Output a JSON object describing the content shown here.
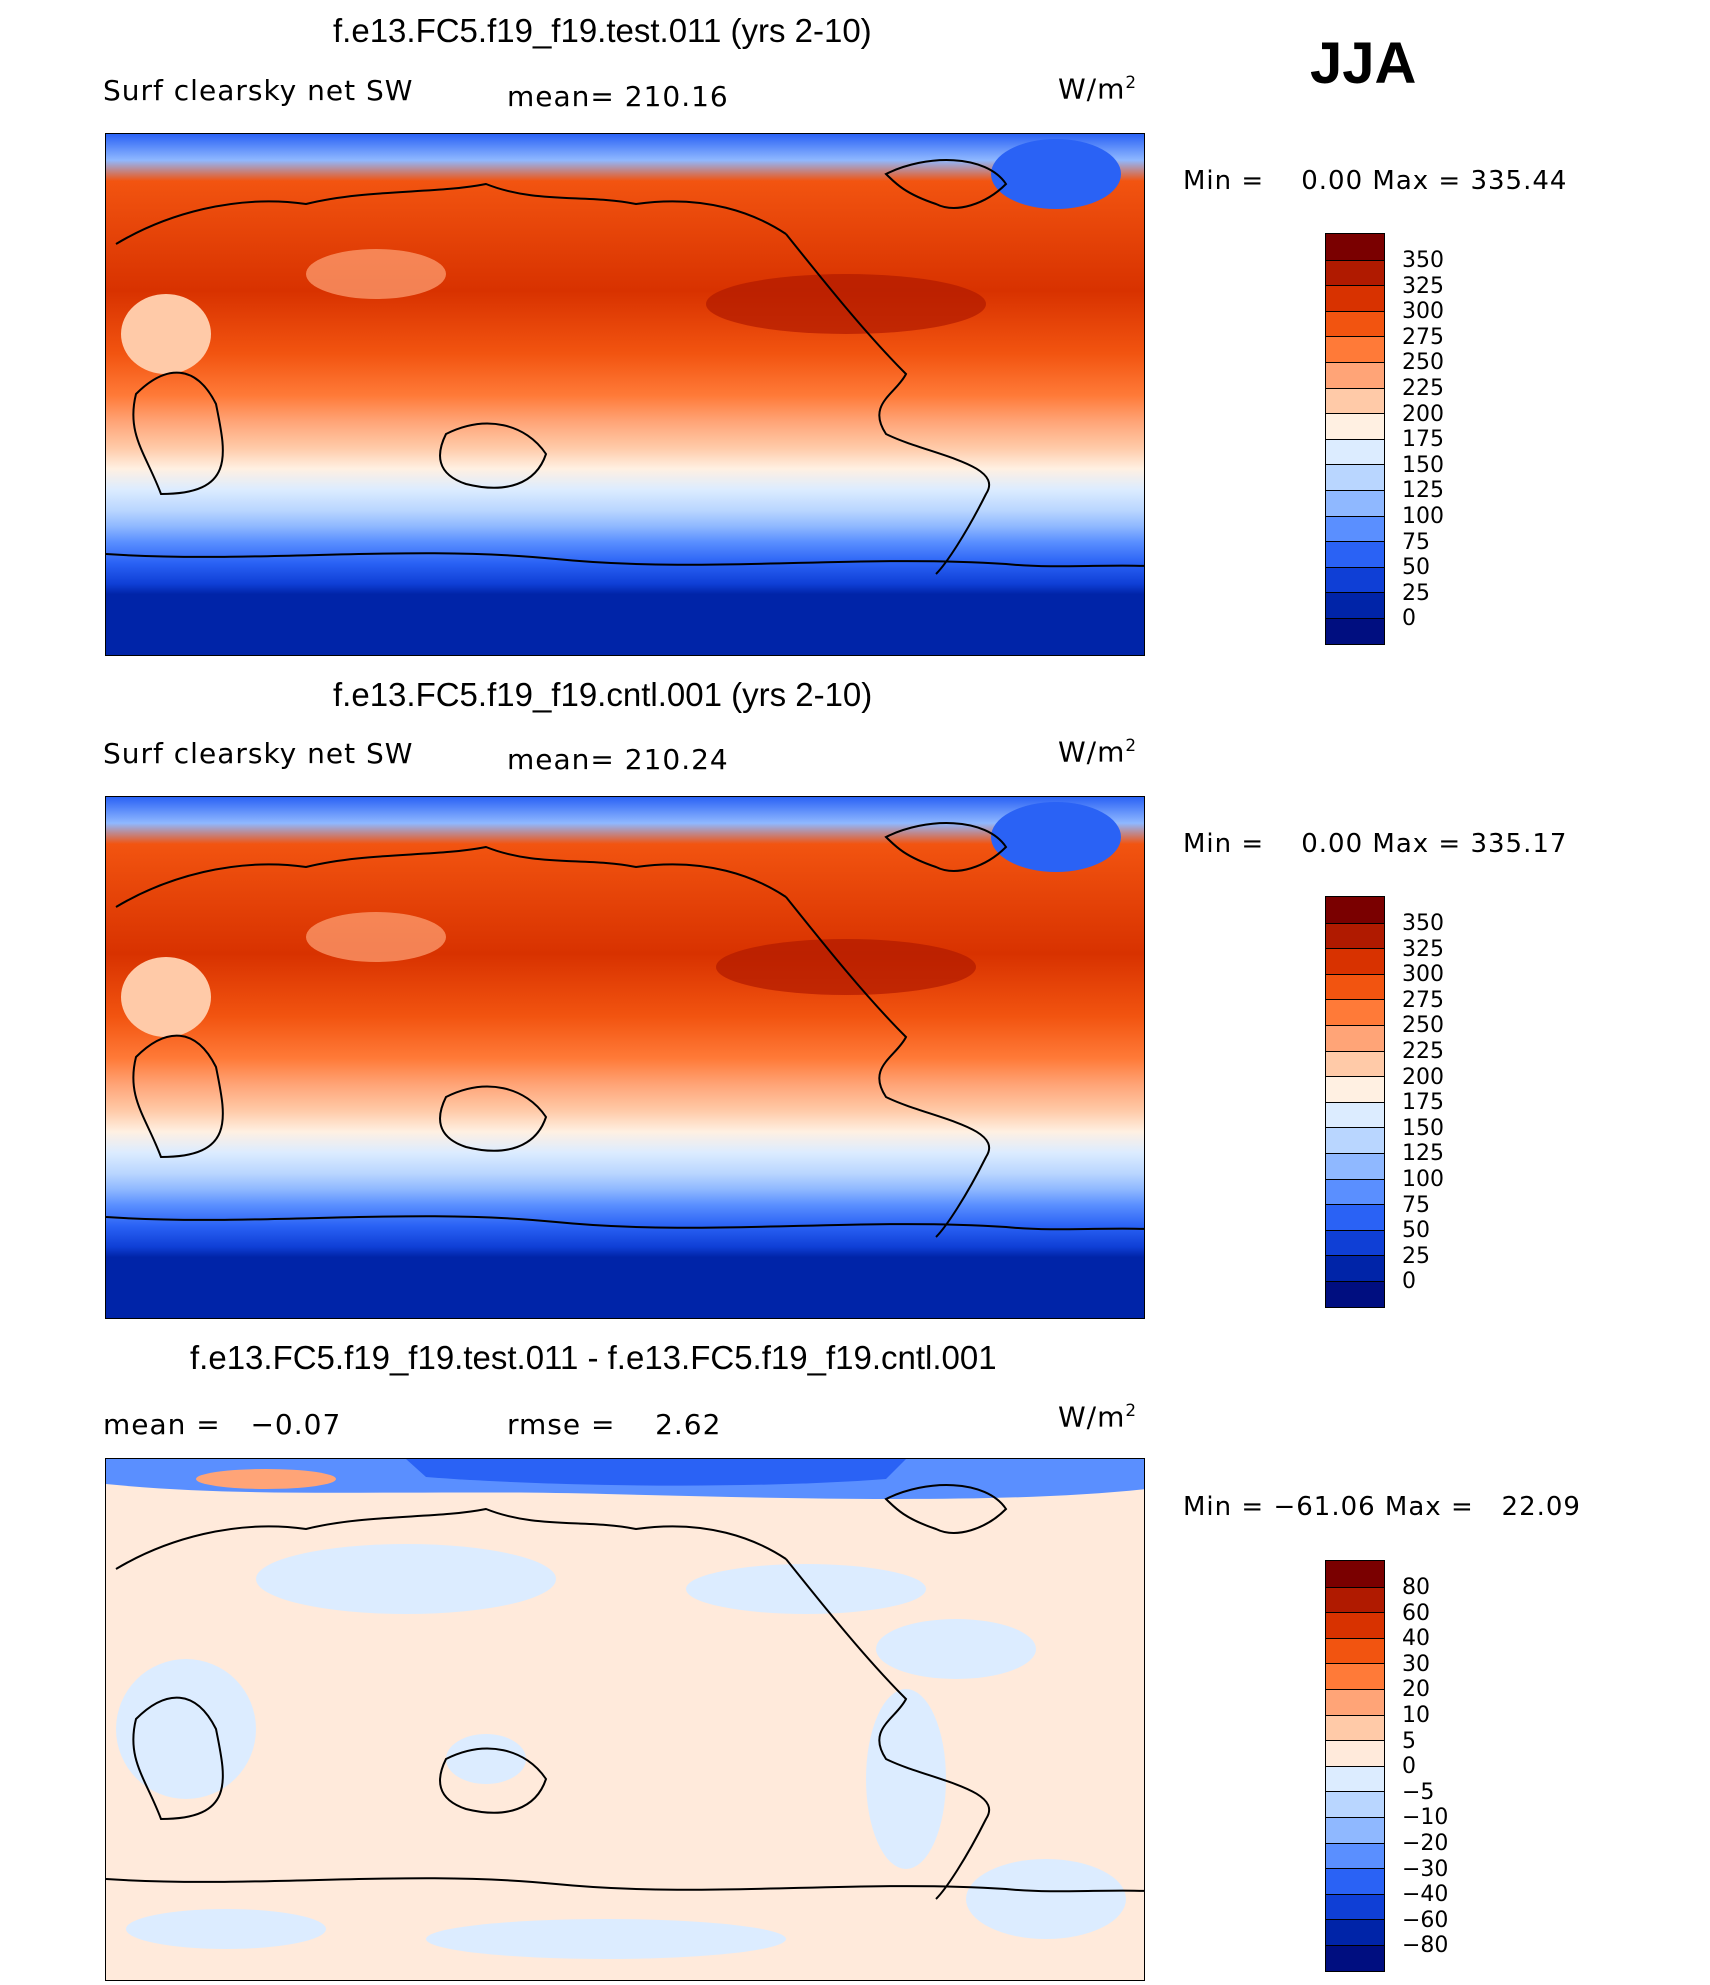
{
  "season": "JJA",
  "panels": [
    {
      "title": "f.e13.FC5.f19_f19.test.011 (yrs 2-10)",
      "left_label": "Surf clearsky net SW",
      "mid_label": "mean= 210.16",
      "units_base": "W/m",
      "units_sup": "2",
      "minmax": "Min =    0.00 Max = 335.44",
      "levels": [
        "350",
        "325",
        "300",
        "275",
        "250",
        "225",
        "200",
        "175",
        "150",
        "125",
        "100",
        "75",
        "50",
        "25",
        "0"
      ],
      "colors": [
        "#7a0000",
        "#b01a00",
        "#d83200",
        "#f25410",
        "#ff7a38",
        "#ffa477",
        "#ffcaa8",
        "#fff0e2",
        "#dcecff",
        "#b9d6ff",
        "#8fb8ff",
        "#5a8fff",
        "#2a62f5",
        "#0f3fd6",
        "#0024a8",
        "#000e80"
      ]
    },
    {
      "title": "f.e13.FC5.f19_f19.cntl.001 (yrs 2-10)",
      "left_label": "Surf clearsky net SW",
      "mid_label": "mean= 210.24",
      "units_base": "W/m",
      "units_sup": "2",
      "minmax": "Min =    0.00 Max = 335.17",
      "levels": [
        "350",
        "325",
        "300",
        "275",
        "250",
        "225",
        "200",
        "175",
        "150",
        "125",
        "100",
        "75",
        "50",
        "25",
        "0"
      ],
      "colors": [
        "#7a0000",
        "#b01a00",
        "#d83200",
        "#f25410",
        "#ff7a38",
        "#ffa477",
        "#ffcaa8",
        "#fff0e2",
        "#dcecff",
        "#b9d6ff",
        "#8fb8ff",
        "#5a8fff",
        "#2a62f5",
        "#0f3fd6",
        "#0024a8",
        "#000e80"
      ]
    },
    {
      "title": "f.e13.FC5.f19_f19.test.011 - f.e13.FC5.f19_f19.cntl.001",
      "left_label": "mean =   −0.07",
      "mid_label": "rmse =    2.62",
      "units_base": "W/m",
      "units_sup": "2",
      "minmax": "Min = −61.06 Max =   22.09",
      "levels": [
        "80",
        "60",
        "40",
        "30",
        "20",
        "10",
        "5",
        "0",
        "−5",
        "−10",
        "−20",
        "−30",
        "−40",
        "−60",
        "−80"
      ],
      "colors": [
        "#7a0000",
        "#b01a00",
        "#d83200",
        "#f25410",
        "#ff7a38",
        "#ffa477",
        "#ffcaa8",
        "#ffeadb",
        "#dcecff",
        "#b9d6ff",
        "#8fb8ff",
        "#5a8fff",
        "#2a62f5",
        "#0f3fd6",
        "#0024a8",
        "#000e80"
      ]
    }
  ]
}
